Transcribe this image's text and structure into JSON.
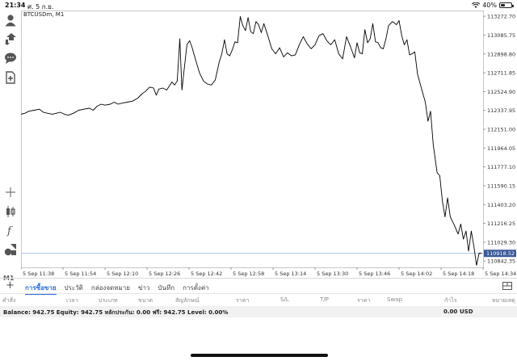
{
  "status_bar": {
    "time": "21:34",
    "date": "ศ. 5 ก.ย.",
    "battery": "40%",
    "battery_level": 0.4
  },
  "left_toolbar": {
    "items": [
      {
        "name": "account-icon"
      },
      {
        "name": "trade-arrows-icon"
      },
      {
        "name": "chat-icon"
      },
      {
        "name": "add-document-icon"
      },
      {
        "name": "crosshair-icon"
      },
      {
        "name": "candlestick-icon"
      },
      {
        "name": "indicator-fx-icon"
      },
      {
        "name": "objects-icon"
      }
    ],
    "timeframe": "M1"
  },
  "chart": {
    "symbol_label": "BTCUSDm, M1",
    "line_color": "#000000",
    "bid_line_color": "#8faad9",
    "current_price_bg": "#3b5998"
  },
  "chart_data": {
    "type": "line",
    "title": "BTCUSDm, M1",
    "ylim": [
      110780,
      113330
    ],
    "y_ticks": [
      "113272.70",
      "113085.75",
      "112898.80",
      "112711.85",
      "112524.90",
      "112337.95",
      "112151.00",
      "111964.05",
      "111777.10",
      "111590.15",
      "111403.20",
      "111216.25",
      "111029.30",
      "110842.35"
    ],
    "current_price": "110918.52",
    "x_ticks": [
      "5 Sep 11:38",
      "5 Sep 11:54",
      "5 Sep 12:10",
      "5 Sep 12:26",
      "5 Sep 12:42",
      "5 Sep 12:58",
      "5 Sep 13:14",
      "5 Sep 13:30",
      "5 Sep 13:46",
      "5 Sep 14:02",
      "5 Sep 14:18",
      "5 Sep 14:34"
    ],
    "x_range_minutes": [
      0,
      176
    ],
    "series": [
      {
        "points": [
          [
            0,
            112300
          ],
          [
            1.5,
            112310
          ],
          [
            3,
            112330
          ],
          [
            5,
            112340
          ],
          [
            7,
            112350
          ],
          [
            8.5,
            112320
          ],
          [
            10,
            112310
          ],
          [
            12,
            112300
          ],
          [
            13.5,
            112310
          ],
          [
            15,
            112320
          ],
          [
            16.5,
            112300
          ],
          [
            18,
            112290
          ],
          [
            20,
            112310
          ],
          [
            22,
            112340
          ],
          [
            24,
            112350
          ],
          [
            26,
            112360
          ],
          [
            27.5,
            112340
          ],
          [
            29,
            112380
          ],
          [
            30.5,
            112400
          ],
          [
            32,
            112390
          ],
          [
            34,
            112400
          ],
          [
            35.5,
            112420
          ],
          [
            37,
            112400
          ],
          [
            38.5,
            112410
          ],
          [
            40.5,
            112420
          ],
          [
            42.5,
            112430
          ],
          [
            44.5,
            112460
          ],
          [
            46,
            112500
          ],
          [
            47.5,
            112530
          ],
          [
            49,
            112570
          ],
          [
            50.5,
            112560
          ],
          [
            51.5,
            112490
          ],
          [
            52.5,
            112550
          ],
          [
            54,
            112560
          ],
          [
            55.5,
            112540
          ],
          [
            56.5,
            112580
          ],
          [
            57.5,
            112620
          ],
          [
            58.5,
            112590
          ],
          [
            59.5,
            112630
          ],
          [
            60.5,
            113050
          ],
          [
            61.3,
            112540
          ],
          [
            62.2,
            112760
          ],
          [
            63.2,
            112990
          ],
          [
            64.2,
            113030
          ],
          [
            65.2,
            112960
          ],
          [
            66.5,
            112840
          ],
          [
            68,
            112710
          ],
          [
            69.5,
            112630
          ],
          [
            71,
            112600
          ],
          [
            72.5,
            112590
          ],
          [
            74,
            112640
          ],
          [
            75.5,
            112820
          ],
          [
            76.5,
            112900
          ],
          [
            77.5,
            113040
          ],
          [
            78.5,
            112900
          ],
          [
            79.5,
            112880
          ],
          [
            80.5,
            112940
          ],
          [
            81.5,
            113020
          ],
          [
            82.5,
            113010
          ],
          [
            83.5,
            113270
          ],
          [
            84.5,
            113180
          ],
          [
            85.5,
            113130
          ],
          [
            86.5,
            113260
          ],
          [
            87.5,
            113120
          ],
          [
            88.5,
            113100
          ],
          [
            89.5,
            113220
          ],
          [
            90.5,
            113190
          ],
          [
            91.5,
            113110
          ],
          [
            92.5,
            113200
          ],
          [
            94,
            113080
          ],
          [
            95.5,
            112950
          ],
          [
            97,
            112900
          ],
          [
            98.5,
            112960
          ],
          [
            100,
            112870
          ],
          [
            101.5,
            112910
          ],
          [
            103,
            112880
          ],
          [
            104.5,
            112890
          ],
          [
            106,
            112990
          ],
          [
            107.5,
            113070
          ],
          [
            109,
            113000
          ],
          [
            110.5,
            112950
          ],
          [
            112,
            112990
          ],
          [
            113.5,
            113080
          ],
          [
            115,
            113100
          ],
          [
            116.5,
            113030
          ],
          [
            118,
            112990
          ],
          [
            119.5,
            113040
          ],
          [
            121,
            112900
          ],
          [
            122.5,
            112850
          ],
          [
            124,
            113070
          ],
          [
            125.5,
            112970
          ],
          [
            127,
            112860
          ],
          [
            128,
            113010
          ],
          [
            129,
            112910
          ],
          [
            130,
            112900
          ],
          [
            131,
            113140
          ],
          [
            132,
            113010
          ],
          [
            133,
            113050
          ],
          [
            134,
            113200
          ],
          [
            135,
            113020
          ],
          [
            136,
            113010
          ],
          [
            137,
            112960
          ],
          [
            138,
            112950
          ],
          [
            139,
            113050
          ],
          [
            140,
            113180
          ],
          [
            141.5,
            113220
          ],
          [
            143,
            113190
          ],
          [
            144,
            113230
          ],
          [
            145,
            113080
          ],
          [
            146,
            112990
          ],
          [
            147,
            113040
          ],
          [
            148,
            112890
          ],
          [
            149,
            112900
          ],
          [
            150,
            112920
          ],
          [
            151,
            112700
          ],
          [
            152.5,
            112560
          ],
          [
            154,
            112420
          ],
          [
            155,
            112230
          ],
          [
            156,
            112330
          ],
          [
            157,
            112000
          ],
          [
            158.5,
            111720
          ],
          [
            159.5,
            111690
          ],
          [
            160.5,
            111440
          ],
          [
            161.5,
            111280
          ],
          [
            162.5,
            111470
          ],
          [
            163.5,
            111280
          ],
          [
            165,
            111200
          ],
          [
            166.5,
            111110
          ],
          [
            167.5,
            111210
          ],
          [
            168.5,
            111060
          ],
          [
            169.5,
            111140
          ],
          [
            170.5,
            110940
          ],
          [
            171.5,
            111140
          ],
          [
            172.5,
            110990
          ],
          [
            173.5,
            110800
          ],
          [
            174.5,
            110920
          ],
          [
            175.5,
            110918.52
          ]
        ]
      }
    ],
    "grid": false
  },
  "bottom_tabs": {
    "add_label": "+",
    "items": [
      "การซื้อขาย",
      "ประวัติ",
      "กล่องจดหมาย",
      "ข่าว",
      "บันทึก",
      "การตั้งค่า"
    ],
    "active_index": 0
  },
  "columns": {
    "headers": [
      "คำสั่ง",
      "เวลา",
      "ประเภท",
      "ขนาด",
      "สัญลักษณ์",
      "ราคา",
      "S/L",
      "T/P",
      "ราคา",
      "Swap",
      "กำไร",
      "หมายเหตุ"
    ]
  },
  "balance_row": {
    "text": "Balance: 942.75 Equity: 942.75 หลักประกัน: 0.00 ฟรี: 942.75 Level: 0.00%",
    "profit": "0.00",
    "currency": "USD"
  }
}
